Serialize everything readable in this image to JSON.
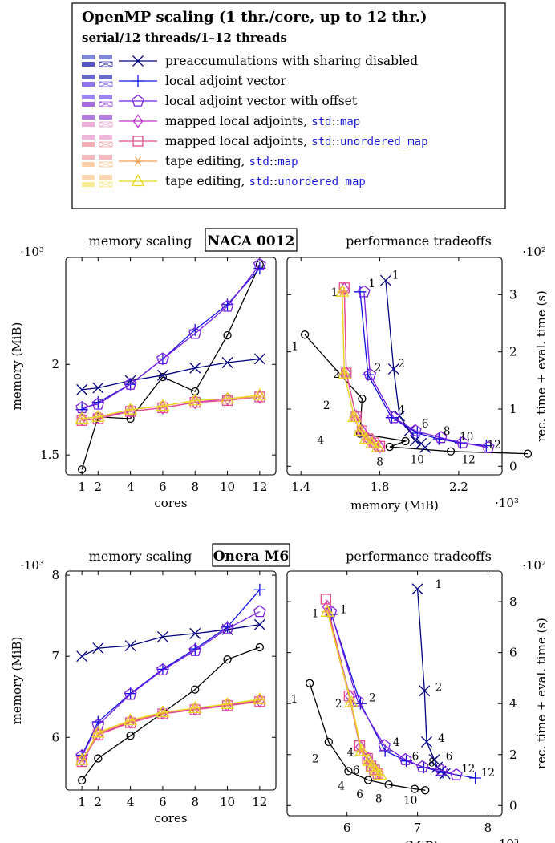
{
  "legend": {
    "title": "OpenMP scaling (1 thr./core, up to 12 thr.)",
    "subtitle": "serial/12 threads/1–12 threads",
    "entries": [
      {
        "key": "sd",
        "parts": [
          [
            "preaccumulations with sharing disabled",
            ""
          ]
        ],
        "color": "#000080",
        "marker": "x"
      },
      {
        "key": "lav",
        "parts": [
          [
            "local adjoint vector",
            ""
          ]
        ],
        "color": "#1010e0",
        "marker": "plus"
      },
      {
        "key": "lavo",
        "parts": [
          [
            "local adjoint vector with offset",
            ""
          ]
        ],
        "color": "#7a1ee0",
        "marker": "pentagon"
      },
      {
        "key": "mla",
        "parts": [
          [
            "mapped local adjoints, ",
            ""
          ],
          [
            "std",
            "m"
          ],
          [
            "::",
            ""
          ],
          [
            "map",
            "m"
          ]
        ],
        "color": "#c030d0",
        "marker": "diamond"
      },
      {
        "key": "mlau",
        "parts": [
          [
            "mapped local adjoints, ",
            ""
          ],
          [
            "std",
            "m"
          ],
          [
            "::",
            ""
          ],
          [
            "unordered_map",
            "m"
          ]
        ],
        "color": "#e84a8a",
        "marker": "square"
      },
      {
        "key": "te",
        "parts": [
          [
            "tape editing, ",
            ""
          ],
          [
            "std",
            "m"
          ],
          [
            "::",
            ""
          ],
          [
            "map",
            "m"
          ]
        ],
        "color": "#f0a050",
        "marker": "asterisk"
      },
      {
        "key": "teu",
        "parts": [
          [
            "tape editing, ",
            ""
          ],
          [
            "std",
            "m"
          ],
          [
            "::",
            ""
          ],
          [
            "unordered_map",
            "m"
          ]
        ],
        "color": "#e8d820",
        "marker": "triangle"
      }
    ],
    "swatches": [
      "#5560c8",
      "#3838b8",
      "#7a5ce8",
      "#9a50d8",
      "#e8a0d0",
      "#f0a0a8",
      "#f8c898",
      "#f8e880"
    ]
  },
  "chart_data": [
    {
      "type": "line",
      "panel": "naca-memory",
      "header": "memory scaling",
      "xlabel": "cores",
      "ylabel": "memory (MiB)",
      "yscale": "·10³",
      "x": [
        1,
        2,
        4,
        6,
        8,
        10,
        12
      ],
      "xticks": [
        1,
        2,
        4,
        6,
        8,
        10,
        12
      ],
      "xlim": [
        0,
        13
      ],
      "ylim": [
        1.39,
        2.59
      ],
      "yticks": [
        "1.5",
        "2"
      ],
      "ytickvals": [
        1.5,
        2.0
      ],
      "series": [
        {
          "key": "ref",
          "values": [
            1.42,
            1.71,
            1.7,
            1.93,
            1.85,
            2.16,
            2.55
          ]
        },
        {
          "key": "sd",
          "values": [
            1.86,
            1.87,
            1.91,
            1.94,
            1.98,
            2.01,
            2.03
          ]
        },
        {
          "key": "lav",
          "values": [
            1.75,
            1.79,
            1.89,
            2.03,
            2.19,
            2.33,
            2.53
          ]
        },
        {
          "key": "lavo",
          "values": [
            1.76,
            1.78,
            1.89,
            2.03,
            2.17,
            2.32,
            2.55
          ]
        },
        {
          "key": "mla",
          "values": [
            1.7,
            1.71,
            1.74,
            1.76,
            1.79,
            1.81,
            1.82
          ]
        },
        {
          "key": "mlau",
          "values": [
            1.69,
            1.7,
            1.74,
            1.76,
            1.79,
            1.8,
            1.82
          ]
        },
        {
          "key": "te",
          "values": [
            1.7,
            1.71,
            1.75,
            1.77,
            1.8,
            1.81,
            1.82
          ]
        },
        {
          "key": "teu",
          "values": [
            1.7,
            1.71,
            1.75,
            1.77,
            1.8,
            1.81,
            1.83
          ]
        }
      ]
    },
    {
      "type": "line",
      "panel": "naca-tradeoff",
      "header": "performance tradeoffs",
      "xlabel": "memory (MiB)",
      "ylabel": "rec. time + eval. time (s)",
      "xscale": "·10³",
      "yscale": "·10²",
      "xlim": [
        1.33,
        2.42
      ],
      "ylim": [
        -0.15,
        3.65
      ],
      "xticks": [
        "1.4",
        "1.8",
        "2.2"
      ],
      "xtickvals": [
        1.4,
        1.8,
        2.2
      ],
      "yticks": [
        "0",
        "1",
        "2",
        "3"
      ],
      "ytickvals": [
        0,
        1,
        2,
        3
      ],
      "series": [
        {
          "key": "ref",
          "x": [
            1.42,
            1.71,
            1.7,
            1.93,
            1.85,
            2.16,
            2.55
          ],
          "y": [
            2.3,
            1.18,
            0.57,
            0.44,
            0.34,
            0.26,
            0.22
          ]
        },
        {
          "key": "sd",
          "x": [
            1.83,
            1.87,
            1.9,
            1.95,
            1.98,
            2.01,
            2.03
          ],
          "y": [
            3.25,
            1.7,
            0.88,
            0.62,
            0.45,
            0.4,
            0.33
          ]
        },
        {
          "key": "lav",
          "x": [
            1.7,
            1.74,
            1.86,
            1.99,
            2.1,
            2.21,
            2.34
          ],
          "y": [
            3.05,
            1.6,
            0.85,
            0.58,
            0.48,
            0.41,
            0.36
          ]
        },
        {
          "key": "lavo",
          "x": [
            1.72,
            1.75,
            1.87,
            1.98,
            2.11,
            2.22,
            2.35
          ],
          "y": [
            3.05,
            1.6,
            0.85,
            0.62,
            0.5,
            0.41,
            0.33
          ]
        },
        {
          "key": "mla",
          "x": [
            1.62,
            1.63,
            1.68,
            1.71,
            1.74,
            1.77,
            1.8
          ],
          "y": [
            3.1,
            1.63,
            0.87,
            0.62,
            0.48,
            0.4,
            0.34
          ]
        },
        {
          "key": "mlau",
          "x": [
            1.62,
            1.63,
            1.68,
            1.71,
            1.74,
            1.77,
            1.8
          ],
          "y": [
            3.12,
            1.63,
            0.87,
            0.62,
            0.48,
            0.41,
            0.35
          ]
        },
        {
          "key": "te",
          "x": [
            1.61,
            1.62,
            1.67,
            1.7,
            1.73,
            1.76,
            1.79
          ],
          "y": [
            3.05,
            1.62,
            0.86,
            0.62,
            0.48,
            0.4,
            0.33
          ]
        },
        {
          "key": "teu",
          "x": [
            1.61,
            1.62,
            1.67,
            1.7,
            1.73,
            1.76,
            1.79
          ],
          "y": [
            3.05,
            1.62,
            0.86,
            0.62,
            0.48,
            0.4,
            0.33
          ]
        }
      ],
      "annotations": [
        {
          "t": "1",
          "c": "#000",
          "x": 1.37,
          "y": 2.1
        },
        {
          "t": "2",
          "c": "#000",
          "x": 1.53,
          "y": 1.07
        },
        {
          "t": "4",
          "c": "#000",
          "x": 1.5,
          "y": 0.46
        },
        {
          "t": "8",
          "c": "#000",
          "x": 1.8,
          "y": 0.08
        },
        {
          "t": "10",
          "c": "#000",
          "x": 1.99,
          "y": 0.12
        },
        {
          "t": "12",
          "c": "#000",
          "x": 2.25,
          "y": 0.12
        },
        {
          "t": "1",
          "c": "#1010e0",
          "x": 1.88,
          "y": 3.35
        },
        {
          "t": "2",
          "c": "#1010e0",
          "x": 1.91,
          "y": 1.8
        },
        {
          "t": "1",
          "c": "#7a1ee0",
          "x": 1.76,
          "y": 3.2
        },
        {
          "t": "2",
          "c": "#7a1ee0",
          "x": 1.79,
          "y": 1.73
        },
        {
          "t": "4",
          "c": "#7a1ee0",
          "x": 1.91,
          "y": 0.99
        },
        {
          "t": "6",
          "c": "#7a1ee0",
          "x": 2.03,
          "y": 0.75
        },
        {
          "t": "8",
          "c": "#7a1ee0",
          "x": 2.14,
          "y": 0.62
        },
        {
          "t": "10",
          "c": "#7a1ee0",
          "x": 2.24,
          "y": 0.52
        },
        {
          "t": "12",
          "c": "#7a1ee0",
          "x": 2.38,
          "y": 0.38
        },
        {
          "t": "1",
          "c": "#f0a050",
          "x": 1.57,
          "y": 3.05
        },
        {
          "t": "2",
          "c": "#f0a050",
          "x": 1.58,
          "y": 1.62
        }
      ]
    },
    {
      "type": "line",
      "panel": "onera-memory",
      "header": "memory scaling",
      "xlabel": "cores",
      "ylabel": "memory (MiB)",
      "yscale": "·10³",
      "x": [
        1,
        2,
        4,
        6,
        8,
        10,
        12
      ],
      "xticks": [
        1,
        2,
        4,
        6,
        8,
        10,
        12
      ],
      "xlim": [
        0,
        13
      ],
      "ylim": [
        5.35,
        8.05
      ],
      "yticks": [
        "6",
        "7",
        "8"
      ],
      "ytickvals": [
        6,
        7,
        8
      ],
      "series": [
        {
          "key": "ref",
          "values": [
            5.47,
            5.74,
            6.02,
            6.3,
            6.59,
            6.96,
            7.11
          ]
        },
        {
          "key": "sd",
          "values": [
            7.0,
            7.1,
            7.13,
            7.24,
            7.28,
            7.33,
            7.39
          ]
        },
        {
          "key": "lav",
          "values": [
            5.78,
            6.19,
            6.54,
            6.84,
            7.09,
            7.36,
            7.82
          ]
        },
        {
          "key": "lavo",
          "values": [
            5.77,
            6.15,
            6.53,
            6.83,
            7.07,
            7.34,
            7.55
          ]
        },
        {
          "key": "mla",
          "values": [
            5.72,
            6.04,
            6.19,
            6.3,
            6.35,
            6.4,
            6.45
          ]
        },
        {
          "key": "mlau",
          "values": [
            5.7,
            6.03,
            6.18,
            6.29,
            6.34,
            6.39,
            6.44
          ]
        },
        {
          "key": "te",
          "values": [
            5.72,
            6.05,
            6.2,
            6.3,
            6.36,
            6.41,
            6.46
          ]
        },
        {
          "key": "teu",
          "values": [
            5.72,
            6.06,
            6.21,
            6.31,
            6.36,
            6.41,
            6.47
          ]
        }
      ]
    },
    {
      "type": "line",
      "panel": "onera-tradeoff",
      "header": "performance tradeoffs",
      "xlabel": "memory (MiB)",
      "ylabel": "rec. time + eval. time (s)",
      "xscale": "·10³",
      "yscale": "·10²",
      "xlim": [
        5.15,
        8.2
      ],
      "ylim": [
        -0.4,
        9.2
      ],
      "xticks": [
        "6",
        "7",
        "8"
      ],
      "xtickvals": [
        6,
        7,
        8
      ],
      "yticks": [
        "0",
        "2",
        "4",
        "6",
        "8"
      ],
      "ytickvals": [
        0,
        2,
        4,
        6,
        8
      ],
      "series": [
        {
          "key": "ref",
          "x": [
            5.47,
            5.74,
            6.02,
            6.3,
            6.59,
            6.96,
            7.11
          ],
          "y": [
            4.8,
            2.5,
            1.35,
            1.0,
            0.82,
            0.65,
            0.6
          ]
        },
        {
          "key": "sd",
          "x": [
            7.0,
            7.1,
            7.13,
            7.24,
            7.28,
            7.33,
            7.39
          ],
          "y": [
            8.5,
            4.5,
            2.5,
            1.8,
            1.5,
            1.35,
            1.25
          ]
        },
        {
          "key": "lav",
          "x": [
            5.78,
            6.19,
            6.54,
            6.84,
            7.09,
            7.36,
            7.82
          ],
          "y": [
            7.5,
            4.0,
            2.15,
            1.75,
            1.5,
            1.3,
            1.08
          ]
        },
        {
          "key": "lavo",
          "x": [
            5.77,
            6.15,
            6.53,
            6.83,
            7.07,
            7.34,
            7.55
          ],
          "y": [
            7.6,
            4.1,
            2.35,
            1.8,
            1.52,
            1.38,
            1.2
          ]
        },
        {
          "key": "mla",
          "x": [
            5.72,
            6.04,
            6.19,
            6.3,
            6.35,
            6.4,
            6.45
          ],
          "y": [
            7.8,
            4.3,
            2.3,
            1.85,
            1.55,
            1.4,
            1.28
          ]
        },
        {
          "key": "mlau",
          "x": [
            5.7,
            6.03,
            6.18,
            6.29,
            6.34,
            6.39,
            6.44
          ],
          "y": [
            8.1,
            4.3,
            2.35,
            1.85,
            1.55,
            1.4,
            1.25
          ]
        },
        {
          "key": "te",
          "x": [
            5.72,
            6.05,
            6.2,
            6.3,
            6.36,
            6.41,
            6.46
          ],
          "y": [
            7.6,
            4.05,
            2.15,
            1.75,
            1.5,
            1.35,
            1.2
          ]
        },
        {
          "key": "teu",
          "x": [
            5.72,
            6.06,
            6.21,
            6.31,
            6.36,
            6.41,
            6.47
          ],
          "y": [
            7.6,
            4.05,
            2.15,
            1.75,
            1.5,
            1.35,
            1.2
          ]
        }
      ],
      "annotations": [
        {
          "t": "1",
          "c": "#000",
          "x": 5.25,
          "y": 4.2
        },
        {
          "t": "2",
          "c": "#000",
          "x": 5.55,
          "y": 1.85
        },
        {
          "t": "4",
          "c": "#000",
          "x": 5.92,
          "y": 0.78
        },
        {
          "t": "6",
          "c": "#000",
          "x": 6.18,
          "y": 0.45
        },
        {
          "t": "8",
          "c": "#000",
          "x": 6.45,
          "y": 0.28
        },
        {
          "t": "10",
          "c": "#000",
          "x": 6.9,
          "y": 0.22
        },
        {
          "t": "1",
          "c": "#1010e0",
          "x": 7.3,
          "y": 8.7
        },
        {
          "t": "2",
          "c": "#1010e0",
          "x": 7.3,
          "y": 4.65
        },
        {
          "t": "4",
          "c": "#1010e0",
          "x": 7.34,
          "y": 2.65
        },
        {
          "t": "6",
          "c": "#1010e0",
          "x": 7.45,
          "y": 1.95
        },
        {
          "t": "12",
          "c": "#1010e0",
          "x": 8.0,
          "y": 1.3
        },
        {
          "t": "1",
          "c": "#7a1ee0",
          "x": 5.95,
          "y": 7.7
        },
        {
          "t": "2",
          "c": "#7a1ee0",
          "x": 6.36,
          "y": 4.25
        },
        {
          "t": "4",
          "c": "#7a1ee0",
          "x": 6.7,
          "y": 2.5
        },
        {
          "t": "6",
          "c": "#7a1ee0",
          "x": 6.97,
          "y": 1.95
        },
        {
          "t": "8",
          "c": "#7a1ee0",
          "x": 7.2,
          "y": 1.7
        },
        {
          "t": "12",
          "c": "#7a1ee0",
          "x": 7.72,
          "y": 1.45
        },
        {
          "t": "1",
          "c": "#f0a050",
          "x": 5.55,
          "y": 7.55
        },
        {
          "t": "2",
          "c": "#f0a050",
          "x": 5.88,
          "y": 4.0
        },
        {
          "t": "4",
          "c": "#f0a050",
          "x": 6.05,
          "y": 2.1
        },
        {
          "t": "6",
          "c": "#f0a050",
          "x": 6.13,
          "y": 1.4
        }
      ]
    }
  ],
  "panels": {
    "naca": {
      "title": "NACA 0012"
    },
    "onera": {
      "title": "Onera M6"
    }
  }
}
